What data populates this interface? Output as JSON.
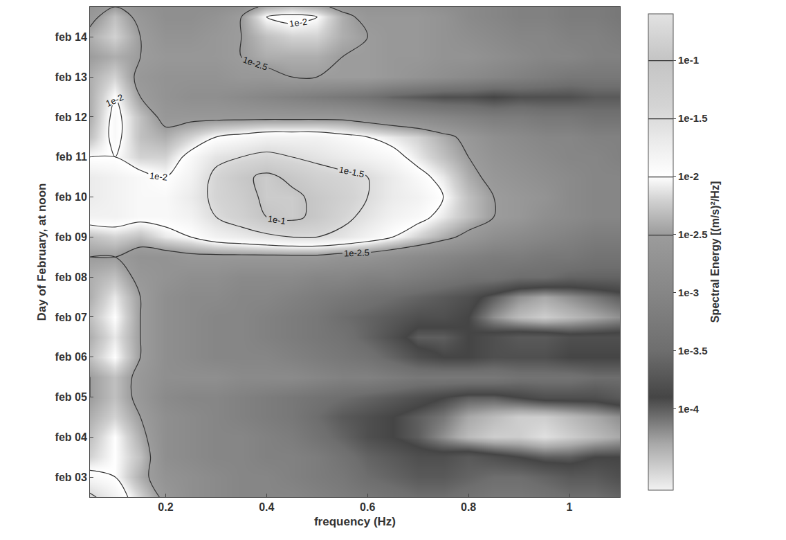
{
  "chart_data": {
    "type": "contour",
    "xlabel": "frequency (Hz)",
    "ylabel": "Day of February, at noon",
    "colorbar_label": "Spectral Energy [(m/s)²/Hz]",
    "x": [
      0.05,
      0.1,
      0.15,
      0.2,
      0.25,
      0.3,
      0.35,
      0.4,
      0.45,
      0.5,
      0.55,
      0.6,
      0.65,
      0.7,
      0.75,
      0.8,
      0.85,
      0.9,
      0.95,
      1.0,
      1.05,
      1.1
    ],
    "y": [
      2.5,
      3,
      3.5,
      4,
      4.5,
      5,
      5.5,
      6,
      6.5,
      7,
      7.5,
      8,
      8.5,
      9,
      9.5,
      10,
      10.5,
      11,
      11.5,
      12,
      12.5,
      13,
      13.5,
      14,
      14.5,
      14.75
    ],
    "z": [
      [
        -1.4,
        -1.8,
        -2.2,
        -2.6,
        -2.8,
        -2.9,
        -3.0,
        -3.0,
        -3.0,
        -3.1,
        -3.2,
        -3.3,
        -3.4,
        -3.5,
        -3.5,
        -3.4,
        -3.3,
        -3.3,
        -3.4,
        -3.5,
        -3.5,
        -3.6
      ],
      [
        -1.9,
        -2.0,
        -2.4,
        -2.7,
        -2.8,
        -2.9,
        -3.0,
        -3.0,
        -3.1,
        -3.2,
        -3.3,
        -3.5,
        -3.6,
        -3.7,
        -3.7,
        -3.6,
        -3.5,
        -3.5,
        -3.6,
        -3.7,
        -3.7,
        -3.8
      ],
      [
        -2.2,
        -2.0,
        -2.3,
        -2.8,
        -2.9,
        -3.0,
        -3.0,
        -3.1,
        -3.1,
        -3.2,
        -3.4,
        -3.6,
        -3.7,
        -3.8,
        -3.8,
        -3.7,
        -3.8,
        -3.9,
        -4.0,
        -4.0,
        -3.9,
        -3.9
      ],
      [
        -2.3,
        -2.0,
        -2.4,
        -2.8,
        -2.9,
        -3.0,
        -3.0,
        -3.1,
        -3.2,
        -3.4,
        -3.6,
        -3.8,
        -3.9,
        -4.0,
        -4.2,
        -4.4,
        -4.5,
        -4.5,
        -4.6,
        -4.5,
        -4.4,
        -4.3
      ],
      [
        -2.4,
        -2.2,
        -2.5,
        -2.8,
        -2.9,
        -3.0,
        -3.1,
        -3.2,
        -3.3,
        -3.5,
        -3.7,
        -3.8,
        -3.9,
        -4.0,
        -4.1,
        -4.3,
        -4.4,
        -4.5,
        -4.5,
        -4.4,
        -4.3,
        -4.2
      ],
      [
        -2.5,
        -2.3,
        -2.6,
        -2.9,
        -3.0,
        -3.0,
        -3.1,
        -3.2,
        -3.3,
        -3.4,
        -3.5,
        -3.6,
        -3.7,
        -3.8,
        -3.9,
        -4.0,
        -4.0,
        -3.9,
        -3.8,
        -3.8,
        -3.8,
        -3.7
      ],
      [
        -2.5,
        -2.3,
        -2.6,
        -2.8,
        -2.8,
        -2.8,
        -2.9,
        -2.9,
        -2.9,
        -3.0,
        -3.1,
        -3.1,
        -3.2,
        -3.3,
        -3.3,
        -3.3,
        -3.3,
        -3.4,
        -3.4,
        -3.4,
        -3.5,
        -3.5
      ],
      [
        -2.3,
        -2.0,
        -2.5,
        -2.8,
        -2.9,
        -3.0,
        -3.0,
        -3.0,
        -3.1,
        -3.2,
        -3.3,
        -3.4,
        -3.6,
        -3.8,
        -3.9,
        -3.9,
        -3.8,
        -3.8,
        -3.8,
        -3.9,
        -3.9,
        -3.9
      ],
      [
        -2.4,
        -2.1,
        -2.5,
        -2.8,
        -2.9,
        -3.0,
        -3.0,
        -3.1,
        -3.2,
        -3.3,
        -3.4,
        -3.6,
        -3.8,
        -4.0,
        -4.0,
        -3.9,
        -3.8,
        -3.7,
        -3.7,
        -3.8,
        -3.8,
        -3.8
      ],
      [
        -2.3,
        -2.0,
        -2.5,
        -2.8,
        -2.9,
        -3.0,
        -3.0,
        -3.1,
        -3.2,
        -3.3,
        -3.5,
        -3.6,
        -3.7,
        -3.8,
        -3.8,
        -3.9,
        -4.2,
        -4.4,
        -4.5,
        -4.4,
        -4.3,
        -4.2
      ],
      [
        -2.4,
        -2.1,
        -2.5,
        -2.8,
        -2.9,
        -2.9,
        -3.0,
        -3.0,
        -3.1,
        -3.2,
        -3.3,
        -3.4,
        -3.5,
        -3.6,
        -3.7,
        -3.8,
        -4.0,
        -4.2,
        -4.3,
        -4.2,
        -4.1,
        -4.0
      ],
      [
        -2.4,
        -2.3,
        -2.6,
        -2.7,
        -2.8,
        -2.8,
        -2.9,
        -2.9,
        -2.9,
        -3.0,
        -3.0,
        -3.1,
        -3.1,
        -3.2,
        -3.3,
        -3.4,
        -3.4,
        -3.5,
        -3.5,
        -3.6,
        -3.6,
        -3.6
      ],
      [
        -2.5,
        -2.5,
        -2.7,
        -2.7,
        -2.6,
        -2.6,
        -2.6,
        -2.6,
        -2.6,
        -2.6,
        -2.7,
        -2.7,
        -2.8,
        -2.9,
        -3.0,
        -3.1,
        -3.2,
        -3.2,
        -3.3,
        -3.3,
        -3.4,
        -3.4
      ],
      [
        -2.3,
        -2.2,
        -2.3,
        -2.1,
        -2.0,
        -1.8,
        -1.7,
        -1.6,
        -1.5,
        -1.5,
        -1.6,
        -1.8,
        -2.0,
        -2.2,
        -2.4,
        -2.6,
        -2.8,
        -2.9,
        -3.0,
        -3.1,
        -3.2,
        -3.2
      ],
      [
        -1.8,
        -1.8,
        -1.9,
        -1.9,
        -1.8,
        -1.5,
        -1.3,
        -1.0,
        -0.9,
        -1.1,
        -1.4,
        -1.6,
        -1.8,
        -1.9,
        -2.1,
        -2.3,
        -2.5,
        -2.6,
        -2.8,
        -2.9,
        -3.0,
        -3.0
      ],
      [
        -1.7,
        -1.8,
        -1.9,
        -1.9,
        -1.7,
        -1.4,
        -1.2,
        -0.9,
        -0.9,
        -1.1,
        -1.3,
        -1.5,
        -1.7,
        -1.8,
        -2.0,
        -2.3,
        -2.5,
        -2.6,
        -2.7,
        -2.9,
        -3.0,
        -3.0
      ],
      [
        -1.7,
        -1.8,
        -1.9,
        -2.0,
        -1.8,
        -1.4,
        -1.1,
        -0.9,
        -1.1,
        -1.3,
        -1.4,
        -1.5,
        -1.7,
        -1.9,
        -2.1,
        -2.4,
        -2.6,
        -2.7,
        -2.8,
        -2.9,
        -3.0,
        -3.0
      ],
      [
        -2.0,
        -2.0,
        -2.2,
        -2.2,
        -1.9,
        -1.6,
        -1.5,
        -1.4,
        -1.5,
        -1.6,
        -1.7,
        -1.8,
        -1.9,
        -2.1,
        -2.3,
        -2.5,
        -2.7,
        -2.8,
        -2.9,
        -3.0,
        -3.0,
        -3.1
      ],
      [
        -2.3,
        -1.9,
        -2.3,
        -2.4,
        -2.2,
        -2.0,
        -1.9,
        -1.8,
        -1.8,
        -1.8,
        -1.9,
        -2.0,
        -2.1,
        -2.2,
        -2.4,
        -2.6,
        -2.8,
        -2.9,
        -3.0,
        -3.0,
        -3.1,
        -3.1
      ],
      [
        -2.4,
        -1.9,
        -2.3,
        -2.6,
        -2.6,
        -2.6,
        -2.6,
        -2.6,
        -2.6,
        -2.6,
        -2.6,
        -2.7,
        -2.8,
        -2.9,
        -3.0,
        -3.1,
        -3.2,
        -3.2,
        -3.3,
        -3.3,
        -3.4,
        -3.4
      ],
      [
        -2.4,
        -2.0,
        -2.5,
        -2.7,
        -2.8,
        -2.8,
        -2.9,
        -3.0,
        -3.1,
        -3.2,
        -3.3,
        -3.4,
        -3.6,
        -3.7,
        -3.8,
        -3.8,
        -3.9,
        -3.8,
        -3.8,
        -3.8,
        -3.7,
        -3.7
      ],
      [
        -2.4,
        -2.2,
        -2.6,
        -2.7,
        -2.7,
        -2.7,
        -2.6,
        -2.6,
        -2.5,
        -2.5,
        -2.5,
        -2.5,
        -2.6,
        -2.7,
        -2.8,
        -2.9,
        -3.0,
        -3.1,
        -3.2,
        -3.3,
        -3.3,
        -3.3
      ],
      [
        -2.5,
        -2.4,
        -2.5,
        -2.6,
        -2.6,
        -2.6,
        -2.5,
        -2.4,
        -2.4,
        -2.4,
        -2.5,
        -2.5,
        -2.6,
        -2.6,
        -2.7,
        -2.7,
        -2.8,
        -2.9,
        -3.0,
        -3.0,
        -3.1,
        -3.1
      ],
      [
        -2.4,
        -2.2,
        -2.5,
        -2.7,
        -2.7,
        -2.6,
        -2.5,
        -2.3,
        -2.2,
        -2.2,
        -2.4,
        -2.5,
        -2.6,
        -2.6,
        -2.7,
        -2.8,
        -2.9,
        -3.0,
        -3.0,
        -3.1,
        -3.1,
        -3.2
      ],
      [
        -2.6,
        -2.3,
        -2.6,
        -2.8,
        -2.8,
        -2.7,
        -2.5,
        -2.0,
        -1.9,
        -2.0,
        -2.4,
        -2.6,
        -2.6,
        -2.6,
        -2.7,
        -2.9,
        -3.0,
        -3.1,
        -3.1,
        -3.2,
        -3.2,
        -3.3
      ],
      [
        -2.7,
        -2.5,
        -2.7,
        -2.8,
        -2.8,
        -2.8,
        -2.7,
        -2.4,
        -2.3,
        -2.4,
        -2.6,
        -2.7,
        -2.7,
        -2.7,
        -2.8,
        -2.9,
        -3.0,
        -3.1,
        -3.1,
        -3.2,
        -3.2,
        -3.3
      ]
    ],
    "contour_levels": [
      -2.5,
      -2,
      -1.5,
      -1
    ],
    "xlim": [
      0.05,
      1.1
    ],
    "xticks": [
      0.2,
      0.4,
      0.6,
      0.8,
      1
    ],
    "ylim": [
      2.5,
      14.75
    ],
    "yticks": [
      {
        "value": 3,
        "label": "feb 03"
      },
      {
        "value": 4,
        "label": "feb 04"
      },
      {
        "value": 5,
        "label": "feb 05"
      },
      {
        "value": 6,
        "label": "feb 06"
      },
      {
        "value": 7,
        "label": "feb 07"
      },
      {
        "value": 8,
        "label": "feb 08"
      },
      {
        "value": 9,
        "label": "feb 09"
      },
      {
        "value": 10,
        "label": "feb 10"
      },
      {
        "value": 11,
        "label": "feb 11"
      },
      {
        "value": 12,
        "label": "feb 12"
      },
      {
        "value": 13,
        "label": "feb 13"
      },
      {
        "value": 14,
        "label": "feb 14"
      }
    ],
    "zlim": [
      -4.7,
      -0.6
    ],
    "zticks": [
      {
        "value": -1,
        "label": "1e-1"
      },
      {
        "value": -1.5,
        "label": "1e-1.5"
      },
      {
        "value": -2,
        "label": "1e-2"
      },
      {
        "value": -2.5,
        "label": "1e-2.5"
      },
      {
        "value": -3,
        "label": "1e-3"
      },
      {
        "value": -3.5,
        "label": "1e-3.5"
      },
      {
        "value": -4,
        "label": "1e-4"
      }
    ],
    "grid": false
  }
}
